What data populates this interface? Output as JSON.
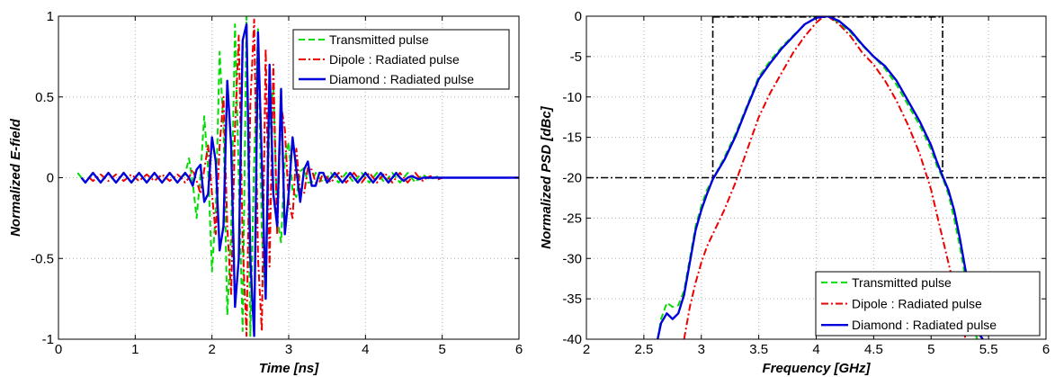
{
  "chart_data": [
    {
      "type": "line",
      "xlabel": "Time  [ns]",
      "ylabel": "Normalized E-field",
      "xlim": [
        0,
        6
      ],
      "ylim": [
        -1,
        1
      ],
      "xticks": [
        "0",
        "1",
        "2",
        "3",
        "4",
        "5",
        "6"
      ],
      "yticks": [
        "-1",
        "-0.5",
        "0",
        "0.5",
        "1"
      ],
      "grid": true,
      "legend_position": "top-right",
      "series": [
        {
          "name": "Transmitted pulse",
          "color": "#00dd00",
          "style": "dashed",
          "x": [
            0.25,
            0.3,
            0.35,
            0.4,
            0.45,
            0.5,
            0.55,
            0.6,
            0.65,
            0.7,
            0.75,
            0.8,
            0.85,
            0.9,
            0.95,
            1.0,
            1.05,
            1.1,
            1.15,
            1.2,
            1.25,
            1.3,
            1.35,
            1.4,
            1.45,
            1.5,
            1.55,
            1.6,
            1.65,
            1.7,
            1.75,
            1.8,
            1.85,
            1.9,
            1.95,
            2.0,
            2.05,
            2.1,
            2.15,
            2.2,
            2.25,
            2.3,
            2.35,
            2.4,
            2.45,
            2.5,
            2.55,
            2.6,
            2.65,
            2.7,
            2.75,
            2.8,
            2.85,
            2.9,
            2.95,
            3.0,
            3.05,
            3.1,
            3.15,
            3.2,
            3.25,
            3.3,
            3.35,
            3.4,
            3.45,
            3.5,
            3.55,
            3.6,
            3.65,
            3.7,
            3.75,
            3.8,
            3.85,
            3.9,
            3.95,
            4.0,
            4.05,
            4.1,
            4.15,
            4.2,
            4.25,
            4.3,
            4.35,
            4.4,
            4.45,
            4.5,
            4.55,
            4.6,
            4.65,
            4.7,
            4.75,
            4.8,
            4.85,
            4.9,
            4.95,
            5.0,
            5.05,
            5.1,
            5.15,
            5.2,
            5.25,
            5.3,
            5.35,
            5.4,
            5.45,
            5.5,
            5.55,
            5.6,
            5.65,
            5.7,
            5.75,
            5.8,
            5.85,
            5.9,
            5.95,
            6.0
          ],
          "y": [
            0.03,
            0.0,
            -0.03,
            0.0,
            0.03,
            0.0,
            -0.03,
            0.0,
            0.03,
            0.0,
            -0.03,
            0.0,
            0.03,
            0.0,
            -0.03,
            0.0,
            0.03,
            0.0,
            -0.03,
            0.0,
            0.03,
            0.0,
            -0.03,
            0.0,
            0.03,
            0.0,
            -0.03,
            0.0,
            0.02,
            0.12,
            -0.03,
            -0.25,
            0.02,
            0.38,
            0.05,
            -0.58,
            -0.2,
            0.78,
            0.3,
            -0.85,
            -0.35,
            0.95,
            0.0,
            -0.95,
            1.0,
            -0.98,
            0.1,
            0.92,
            -0.35,
            -0.75,
            0.4,
            0.55,
            -0.25,
            -0.4,
            0.12,
            0.22,
            -0.08,
            -0.12,
            0.04,
            0.06,
            -0.03,
            -0.03,
            0.03,
            0.0,
            -0.03,
            0.0,
            0.03,
            0.0,
            -0.03,
            0.0,
            0.03,
            0.0,
            -0.03,
            0.0,
            0.03,
            0.0,
            -0.03,
            0.0,
            0.03,
            0.0,
            -0.03,
            0.0,
            0.03,
            0.0,
            -0.03,
            0.0,
            0.03,
            0.0,
            -0.03,
            0.0,
            0.02,
            0.0,
            -0.01,
            0.0,
            0.01,
            0.0,
            0.0,
            0.0,
            0.0,
            0.0,
            0.0,
            0.0,
            0.0,
            0.0,
            0.0,
            0.0,
            0.0,
            0.0,
            0.0,
            0.0,
            0.0,
            0.0,
            0.0,
            0.0,
            0.0,
            0.0
          ]
        },
        {
          "name": "Dipole : Radiated pulse",
          "color": "#ee0000",
          "style": "dashdot",
          "x": [
            0.4,
            0.45,
            0.5,
            0.55,
            0.6,
            0.65,
            0.7,
            0.75,
            0.8,
            0.85,
            0.9,
            0.95,
            1.0,
            1.05,
            1.1,
            1.15,
            1.2,
            1.25,
            1.3,
            1.35,
            1.4,
            1.45,
            1.5,
            1.55,
            1.6,
            1.65,
            1.7,
            1.75,
            1.8,
            1.85,
            1.9,
            1.95,
            2.0,
            2.05,
            2.1,
            2.15,
            2.2,
            2.25,
            2.3,
            2.35,
            2.4,
            2.45,
            2.5,
            2.55,
            2.6,
            2.65,
            2.7,
            2.75,
            2.8,
            2.85,
            2.9,
            2.95,
            3.0,
            3.05,
            3.1,
            3.15,
            3.2,
            3.25,
            3.3,
            3.35,
            3.4,
            3.45,
            3.5,
            3.55,
            3.6,
            3.65,
            3.7,
            3.75,
            3.8,
            3.85,
            3.9,
            3.95,
            4.0,
            4.05,
            4.1,
            4.15,
            4.2,
            4.25,
            4.3,
            4.35,
            4.4,
            4.45,
            4.5,
            4.55,
            4.6,
            4.65,
            4.7,
            4.75,
            4.8,
            4.85,
            4.9,
            4.95,
            5.0,
            5.05,
            5.1,
            5.15,
            5.2,
            5.25,
            5.3,
            5.35,
            5.4,
            5.45,
            5.5,
            5.55,
            5.6,
            5.65,
            5.7,
            5.75,
            5.8,
            5.85,
            5.9,
            5.95,
            6.0
          ],
          "y": [
            0.0,
            -0.02,
            0.0,
            0.02,
            0.0,
            -0.02,
            0.0,
            0.02,
            0.0,
            -0.02,
            0.0,
            0.02,
            0.0,
            -0.02,
            0.0,
            0.02,
            0.0,
            -0.02,
            0.0,
            0.02,
            0.0,
            -0.02,
            0.0,
            0.02,
            0.0,
            -0.03,
            0.0,
            0.05,
            -0.02,
            -0.1,
            0.05,
            0.2,
            -0.1,
            -0.35,
            0.2,
            0.5,
            -0.3,
            -0.72,
            0.3,
            0.88,
            -0.4,
            -0.98,
            0.45,
            0.98,
            -0.5,
            -0.95,
            0.8,
            -0.55,
            0.7,
            -0.35,
            0.45,
            0.3,
            -0.15,
            -0.25,
            0.18,
            -0.1,
            -0.1,
            0.06,
            0.05,
            -0.03,
            -0.03,
            0.03,
            0.0,
            -0.03,
            0.0,
            0.03,
            0.0,
            -0.03,
            0.0,
            0.03,
            0.0,
            -0.03,
            0.0,
            0.03,
            0.0,
            -0.03,
            0.0,
            0.03,
            0.0,
            -0.03,
            0.0,
            0.03,
            0.0,
            -0.03,
            0.0,
            0.03,
            0.0,
            -0.02,
            0.0,
            0.01,
            0.0,
            -0.01,
            0.0,
            0.0,
            0.0,
            0.0,
            0.0,
            0.0,
            0.0,
            0.0,
            0.0,
            0.0,
            0.0,
            0.0,
            0.0,
            0.0,
            0.0,
            0.0,
            0.0,
            0.0,
            0.0,
            0.0,
            0.0
          ]
        },
        {
          "name": "Diamond : Radiated pulse",
          "color": "#0000dd",
          "style": "solid",
          "x": [
            0.3,
            0.35,
            0.4,
            0.45,
            0.5,
            0.55,
            0.6,
            0.65,
            0.7,
            0.75,
            0.8,
            0.85,
            0.9,
            0.95,
            1.0,
            1.05,
            1.1,
            1.15,
            1.2,
            1.25,
            1.3,
            1.35,
            1.4,
            1.45,
            1.5,
            1.55,
            1.6,
            1.65,
            1.7,
            1.75,
            1.8,
            1.85,
            1.9,
            1.95,
            2.0,
            2.05,
            2.1,
            2.15,
            2.2,
            2.25,
            2.3,
            2.35,
            2.4,
            2.45,
            2.5,
            2.55,
            2.6,
            2.65,
            2.7,
            2.75,
            2.8,
            2.85,
            2.9,
            2.95,
            3.0,
            3.05,
            3.1,
            3.15,
            3.2,
            3.25,
            3.3,
            3.35,
            3.4,
            3.45,
            3.5,
            3.55,
            3.6,
            3.65,
            3.7,
            3.75,
            3.8,
            3.85,
            3.9,
            3.95,
            4.0,
            4.05,
            4.1,
            4.15,
            4.2,
            4.25,
            4.3,
            4.35,
            4.4,
            4.45,
            4.5,
            4.55,
            4.6,
            4.65,
            4.7,
            4.75,
            4.8,
            4.85,
            4.9,
            4.95,
            5.0,
            5.05,
            5.1,
            5.15,
            5.2,
            5.25,
            5.3,
            5.35,
            5.4,
            5.45,
            5.5,
            5.55,
            5.6,
            5.65,
            5.7,
            5.75,
            5.8,
            5.85,
            5.9,
            5.95,
            6.0
          ],
          "y": [
            0.0,
            -0.03,
            0.0,
            0.03,
            0.0,
            -0.03,
            0.0,
            0.03,
            0.0,
            -0.03,
            0.0,
            0.03,
            0.0,
            -0.03,
            0.0,
            0.03,
            0.0,
            -0.03,
            0.0,
            0.03,
            0.0,
            -0.03,
            0.0,
            0.03,
            0.0,
            -0.03,
            0.0,
            0.03,
            0.0,
            -0.05,
            0.05,
            0.08,
            -0.15,
            -0.1,
            0.25,
            0.1,
            -0.45,
            -0.3,
            0.6,
            0.2,
            -0.8,
            -0.5,
            0.85,
            0.95,
            -0.5,
            -0.98,
            0.9,
            0.1,
            -0.75,
            0.7,
            -0.1,
            -0.3,
            0.55,
            -0.35,
            -0.1,
            0.25,
            0.05,
            -0.15,
            0.05,
            0.1,
            -0.05,
            -0.05,
            0.03,
            0.03,
            -0.03,
            0.0,
            0.03,
            0.0,
            -0.03,
            0.0,
            0.03,
            0.0,
            -0.03,
            0.0,
            0.03,
            0.0,
            -0.03,
            0.0,
            0.03,
            0.0,
            -0.03,
            0.0,
            0.03,
            0.0,
            -0.02,
            0.0,
            0.01,
            0.0,
            -0.01,
            0.0,
            0.0,
            0.0,
            0.0,
            0.0,
            0.0,
            0.0,
            0.0,
            0.0,
            0.0,
            0.0,
            0.0,
            0.0,
            0.0,
            0.0,
            0.0,
            0.0,
            0.0,
            0.0,
            0.0,
            0.0,
            0.0,
            0.0,
            0.0,
            0.0,
            0.0
          ]
        }
      ]
    },
    {
      "type": "line",
      "xlabel": "Frequency  [GHz]",
      "ylabel": "Normalized PSD  [dBc]",
      "xlim": [
        2,
        6
      ],
      "ylim": [
        -40,
        0
      ],
      "xticks": [
        "2",
        "2.5",
        "3",
        "3.5",
        "4",
        "4.5",
        "5",
        "5.5",
        "6"
      ],
      "yticks": [
        "-40",
        "-35",
        "-30",
        "-25",
        "-20",
        "-15",
        "-10",
        "-5",
        "0"
      ],
      "grid": true,
      "legend_position": "bottom-right",
      "reference_lines": {
        "color": "#000000",
        "style": "dashdot",
        "horizontal_y": -20,
        "vertical_x": [
          3.1,
          5.1
        ],
        "top_y": 0
      },
      "series": [
        {
          "name": "Transmitted pulse",
          "color": "#00dd00",
          "style": "dashed",
          "x": [
            2.62,
            2.65,
            2.7,
            2.75,
            2.8,
            2.85,
            2.9,
            2.95,
            3.0,
            3.05,
            3.1,
            3.2,
            3.3,
            3.4,
            3.5,
            3.6,
            3.7,
            3.8,
            3.9,
            4.0,
            4.1,
            4.2,
            4.3,
            4.4,
            4.5,
            4.6,
            4.7,
            4.8,
            4.9,
            5.0,
            5.05,
            5.1,
            5.15,
            5.2,
            5.25,
            5.3,
            5.35,
            5.4
          ],
          "y": [
            -40,
            -37.5,
            -35.5,
            -36.0,
            -35.8,
            -34.0,
            -30.0,
            -26.0,
            -23.5,
            -21.5,
            -20.2,
            -17.5,
            -14.5,
            -11.0,
            -7.5,
            -5.5,
            -3.8,
            -2.4,
            -1.0,
            -0.2,
            0.0,
            -0.8,
            -2.0,
            -3.6,
            -5.0,
            -6.5,
            -8.5,
            -11.0,
            -13.5,
            -16.5,
            -18.5,
            -20.0,
            -22.0,
            -25.0,
            -28.5,
            -32.5,
            -36.5,
            -40.0
          ]
        },
        {
          "name": "Dipole : Radiated pulse",
          "color": "#ee0000",
          "style": "dashdot",
          "x": [
            2.85,
            2.9,
            2.95,
            3.0,
            3.05,
            3.1,
            3.2,
            3.3,
            3.4,
            3.5,
            3.6,
            3.7,
            3.8,
            3.9,
            4.0,
            4.05,
            4.1,
            4.2,
            4.3,
            4.4,
            4.5,
            4.6,
            4.7,
            4.8,
            4.9,
            5.0,
            5.05,
            5.1,
            5.15,
            5.2,
            5.25,
            5.3
          ],
          "y": [
            -40,
            -36.0,
            -33.0,
            -30.5,
            -28.5,
            -27.0,
            -24.0,
            -20.5,
            -16.5,
            -12.5,
            -9.5,
            -7.0,
            -4.5,
            -2.5,
            -0.8,
            -0.2,
            0.0,
            -1.0,
            -2.5,
            -4.5,
            -6.0,
            -8.0,
            -10.5,
            -13.5,
            -17.0,
            -21.5,
            -24.5,
            -27.5,
            -30.5,
            -33.5,
            -37.0,
            -40.0
          ]
        },
        {
          "name": "Diamond : Radiated pulse",
          "color": "#0000dd",
          "style": "solid",
          "x": [
            2.62,
            2.65,
            2.7,
            2.75,
            2.8,
            2.85,
            2.9,
            2.95,
            3.0,
            3.05,
            3.1,
            3.2,
            3.3,
            3.4,
            3.5,
            3.6,
            3.7,
            3.8,
            3.9,
            4.0,
            4.1,
            4.2,
            4.3,
            4.4,
            4.5,
            4.6,
            4.7,
            4.8,
            4.9,
            5.0,
            5.05,
            5.1,
            5.15,
            5.2,
            5.25,
            5.3,
            5.35,
            5.4,
            5.45
          ],
          "y": [
            -40,
            -38.0,
            -36.8,
            -37.5,
            -36.8,
            -34.5,
            -30.5,
            -26.5,
            -24.0,
            -22.0,
            -20.2,
            -17.8,
            -14.8,
            -11.2,
            -7.8,
            -5.8,
            -4.0,
            -2.5,
            -1.0,
            -0.2,
            0.0,
            -0.6,
            -1.8,
            -3.5,
            -5.0,
            -6.2,
            -8.0,
            -10.5,
            -13.0,
            -16.0,
            -18.0,
            -19.8,
            -21.5,
            -24.0,
            -27.5,
            -31.5,
            -35.5,
            -39.0,
            -40.0
          ]
        }
      ]
    }
  ]
}
